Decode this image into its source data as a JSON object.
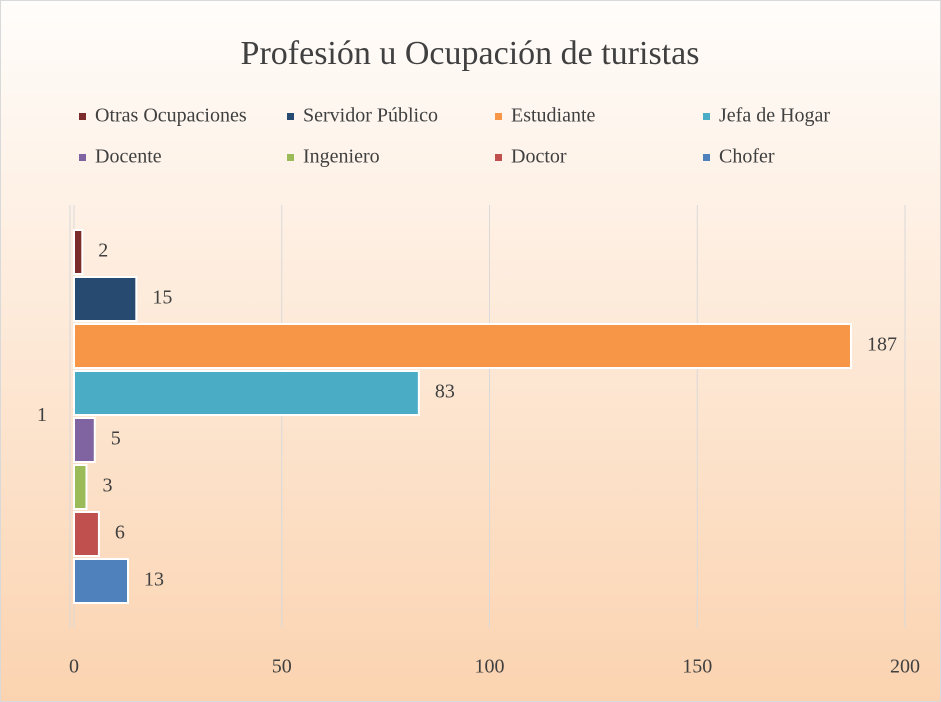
{
  "chart_data": {
    "type": "bar",
    "orientation": "horizontal",
    "title": "Profesión u Ocupación de turistas",
    "categories": [
      "1"
    ],
    "series": [
      {
        "name": "Otras Ocupaciones",
        "color": "#7b2c2a",
        "values": [
          2
        ]
      },
      {
        "name": "Servidor Público",
        "color": "#264a70",
        "values": [
          15
        ]
      },
      {
        "name": "Estudiante",
        "color": "#f79646",
        "values": [
          187
        ]
      },
      {
        "name": "Jefa de Hogar",
        "color": "#4bacc6",
        "values": [
          83
        ]
      },
      {
        "name": "Docente",
        "color": "#8064a2",
        "values": [
          5
        ]
      },
      {
        "name": "Ingeniero",
        "color": "#9bbb59",
        "values": [
          3
        ]
      },
      {
        "name": "Doctor",
        "color": "#c0504d",
        "values": [
          6
        ]
      },
      {
        "name": "Chofer",
        "color": "#4f81bd",
        "values": [
          13
        ]
      }
    ],
    "xlim": [
      0,
      200
    ],
    "xticks": [
      0,
      50,
      100,
      150,
      200
    ],
    "grid": true,
    "legend": "top"
  }
}
